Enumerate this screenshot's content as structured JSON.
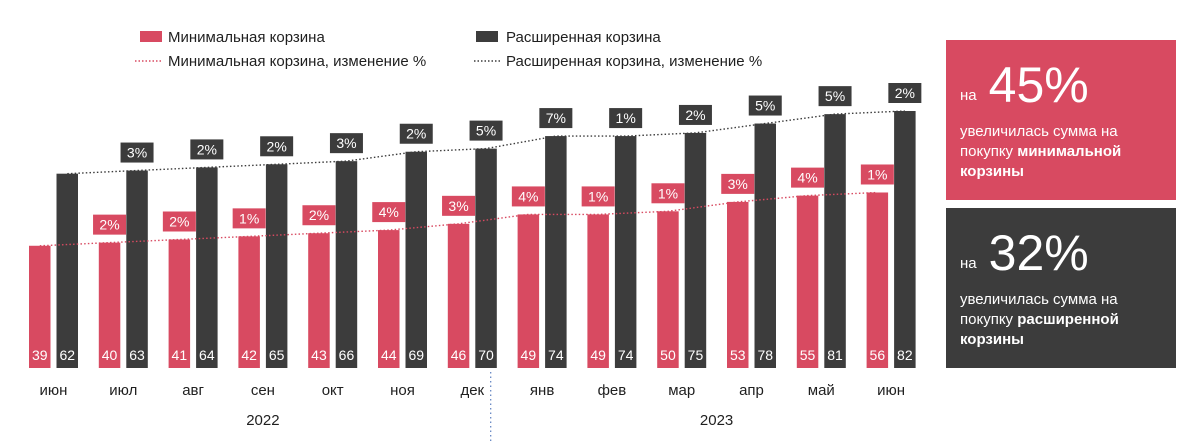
{
  "chart_data": {
    "type": "bar",
    "categories": [
      "июн",
      "июл",
      "авг",
      "сен",
      "окт",
      "ноя",
      "дек",
      "янв",
      "фев",
      "мар",
      "апр",
      "май",
      "июн"
    ],
    "years": [
      {
        "label": "2022",
        "from_index": 0,
        "to_index": 6
      },
      {
        "label": "2023",
        "from_index": 7,
        "to_index": 12
      }
    ],
    "series": [
      {
        "name": "Минимальная корзина",
        "color": "#d84a61",
        "values": [
          39,
          40,
          41,
          42,
          43,
          44,
          46,
          49,
          49,
          50,
          53,
          55,
          56
        ],
        "change_labels": [
          null,
          "2%",
          "2%",
          "1%",
          "2%",
          "4%",
          "3%",
          "4%",
          "1%",
          "1%",
          "3%",
          "4%",
          "1%"
        ]
      },
      {
        "name": "Расширенная корзина",
        "color": "#3c3c3c",
        "values": [
          62,
          63,
          64,
          65,
          66,
          69,
          70,
          74,
          74,
          75,
          78,
          81,
          82
        ],
        "change_labels": [
          null,
          "3%",
          "2%",
          "2%",
          "3%",
          "2%",
          "5%",
          "7%",
          "1%",
          "2%",
          "5%",
          "5%",
          "2%"
        ]
      }
    ],
    "trend_legend": [
      "Минимальная корзина, изменение %",
      "Расширенная корзина, изменение %"
    ],
    "ylim": [
      0,
      82
    ],
    "grid": false,
    "legend_position": "top-left"
  },
  "cards": {
    "min": {
      "prefix": "на",
      "value": "45%",
      "text": "увеличилась сумма на покупку ",
      "bold": "минимальной корзины"
    },
    "ext": {
      "prefix": "на",
      "value": "32%",
      "text": "увеличилась сумма на покупку ",
      "bold": "расширенной корзины"
    }
  }
}
